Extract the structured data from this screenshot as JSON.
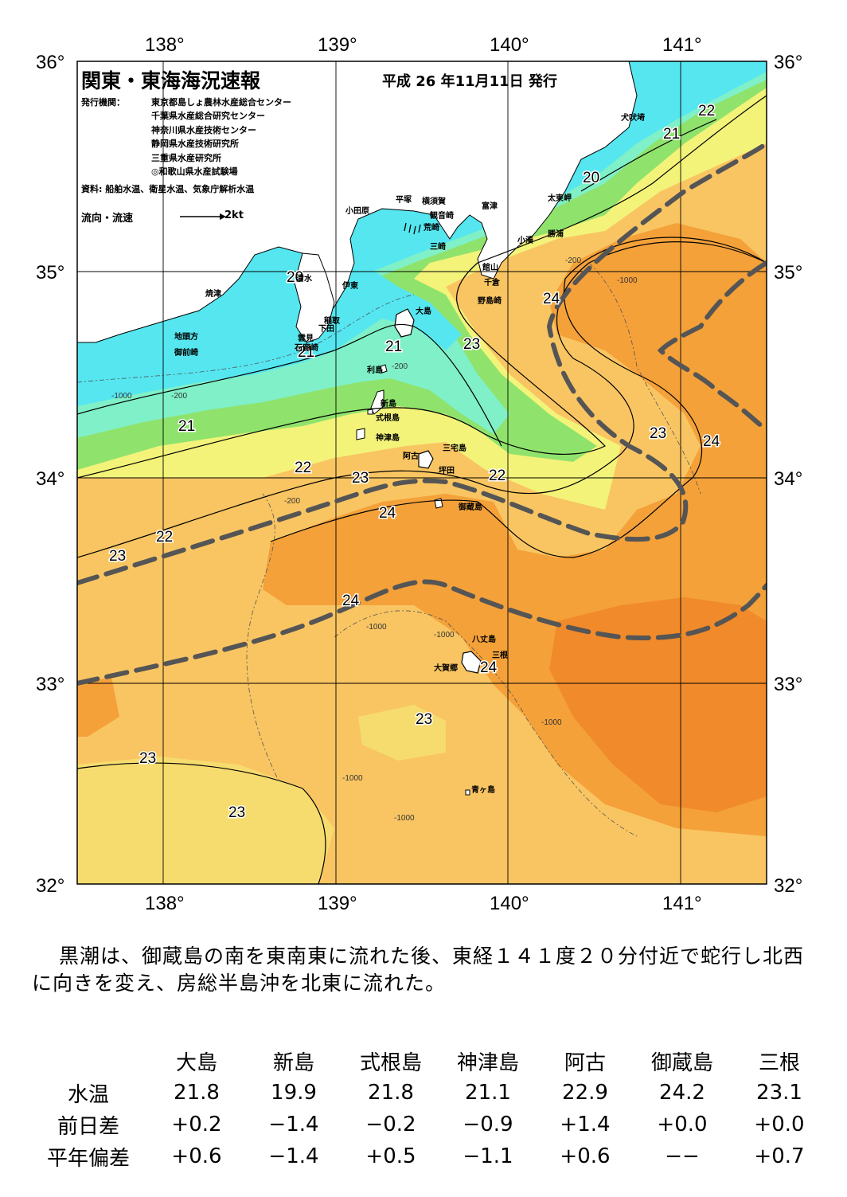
{
  "header": {
    "title": "関東・東海海況速報",
    "issue_date": "平成 26 年11月11日 発行",
    "org_label": "発行機関：",
    "organizations": [
      "東京都島しょ農林水産総合センター",
      "千葉県水産総合研究センター",
      "神奈川県水産技術センター",
      "静岡県水産技術研究所",
      "三重県水産研究所",
      "◎和歌山県水産試験場"
    ],
    "sources": "資料: 船舶水温、衛星水温、気象庁解析水温",
    "flow_label": "流向・流速",
    "flow_scale": "2kt"
  },
  "map": {
    "lon_ticks": [
      "138°",
      "139°",
      "140°",
      "141°"
    ],
    "lat_ticks": [
      "36°",
      "35°",
      "34°",
      "33°",
      "32°"
    ],
    "colors": {
      "t19_20": "#55e6f0",
      "t20_21": "#7ff0c8",
      "t21_22": "#8fe36c",
      "t22_23": "#f3f37a",
      "t23_24": "#f9c562",
      "t24_25": "#f4a13a",
      "t25_plus": "#f08a2a",
      "land": "#ffffff",
      "kuroshio_axis": "#555555"
    },
    "contour_labels": [
      "20",
      "21",
      "22",
      "23",
      "24"
    ],
    "depth_labels": [
      "-200",
      "-1000"
    ],
    "places": [
      "犬吠埼",
      "太東岬",
      "勝浦",
      "小湊",
      "富津",
      "観音崎",
      "横須賀",
      "平塚",
      "小田原",
      "荒崎",
      "三崎",
      "館山",
      "千倉",
      "野島崎",
      "大島",
      "伊東",
      "稲取",
      "下田",
      "雲見",
      "石廊崎",
      "焼津",
      "地頭方",
      "御前崎",
      "利島",
      "新島",
      "式根島",
      "神津島",
      "三宅島",
      "阿古",
      "坪田",
      "御蔵島",
      "八丈島",
      "三根",
      "大賀郷",
      "青ヶ島",
      "清水"
    ]
  },
  "summary": "黒潮は、御蔵島の南を東南東に流れた後、東経１４１度２０分付近で蛇行し北西に向きを変え、房総半島沖を北東に流れた。",
  "stations_table": {
    "columns": [
      "大島",
      "新島",
      "式根島",
      "神津島",
      "阿古",
      "御蔵島",
      "三根"
    ],
    "rows": [
      {
        "label": "水温",
        "values": [
          "21.8",
          "19.9",
          "21.8",
          "21.1",
          "22.9",
          "24.2",
          "23.1"
        ]
      },
      {
        "label": "前日差",
        "values": [
          "+0.2",
          "−1.4",
          "−0.2",
          "−0.9",
          "+1.4",
          "+0.0",
          "+0.0"
        ]
      },
      {
        "label": "平年偏差",
        "values": [
          "+0.6",
          "−1.4",
          "+0.5",
          "−1.1",
          "+0.6",
          "−−",
          "+0.7"
        ]
      }
    ]
  }
}
